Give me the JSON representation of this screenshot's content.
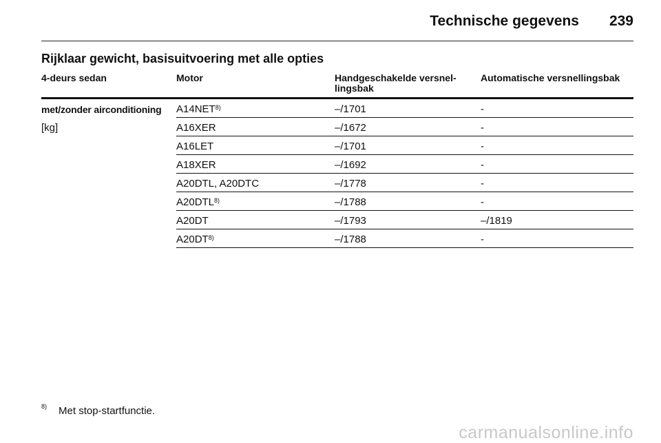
{
  "header": {
    "chapter_title": "Technische gegevens",
    "page_number": "239"
  },
  "section_title": "Rijklaar gewicht, basisuitvoering met alle opties",
  "table": {
    "columns": [
      "4-deurs sedan",
      "Motor",
      "Handgeschakelde versnel-lingsbak",
      "Automatische versnellingsbak"
    ],
    "row_label": "met/zonder airconditioning",
    "unit": "[kg]",
    "rows": [
      {
        "motor": "A14NET",
        "footnote": "8)",
        "manual": "–/1701",
        "automatic": "-"
      },
      {
        "motor": "A16XER",
        "footnote": "",
        "manual": "–/1672",
        "automatic": "-"
      },
      {
        "motor": "A16LET",
        "footnote": "",
        "manual": "–/1701",
        "automatic": "-"
      },
      {
        "motor": "A18XER",
        "footnote": "",
        "manual": "–/1692",
        "automatic": "-"
      },
      {
        "motor": "A20DTL, A20DTC",
        "footnote": "",
        "manual": "–/1778",
        "automatic": "-"
      },
      {
        "motor": "A20DTL",
        "footnote": "8)",
        "manual": "–/1788",
        "automatic": "-"
      },
      {
        "motor": "A20DT",
        "footnote": "",
        "manual": "–/1793",
        "automatic": "–/1819"
      },
      {
        "motor": "A20DT",
        "footnote": "8)",
        "manual": "–/1788",
        "automatic": "-"
      }
    ]
  },
  "footnote": {
    "marker": "8)",
    "text": "Met stop-startfunctie."
  },
  "watermark": "carmanualsonline.info"
}
